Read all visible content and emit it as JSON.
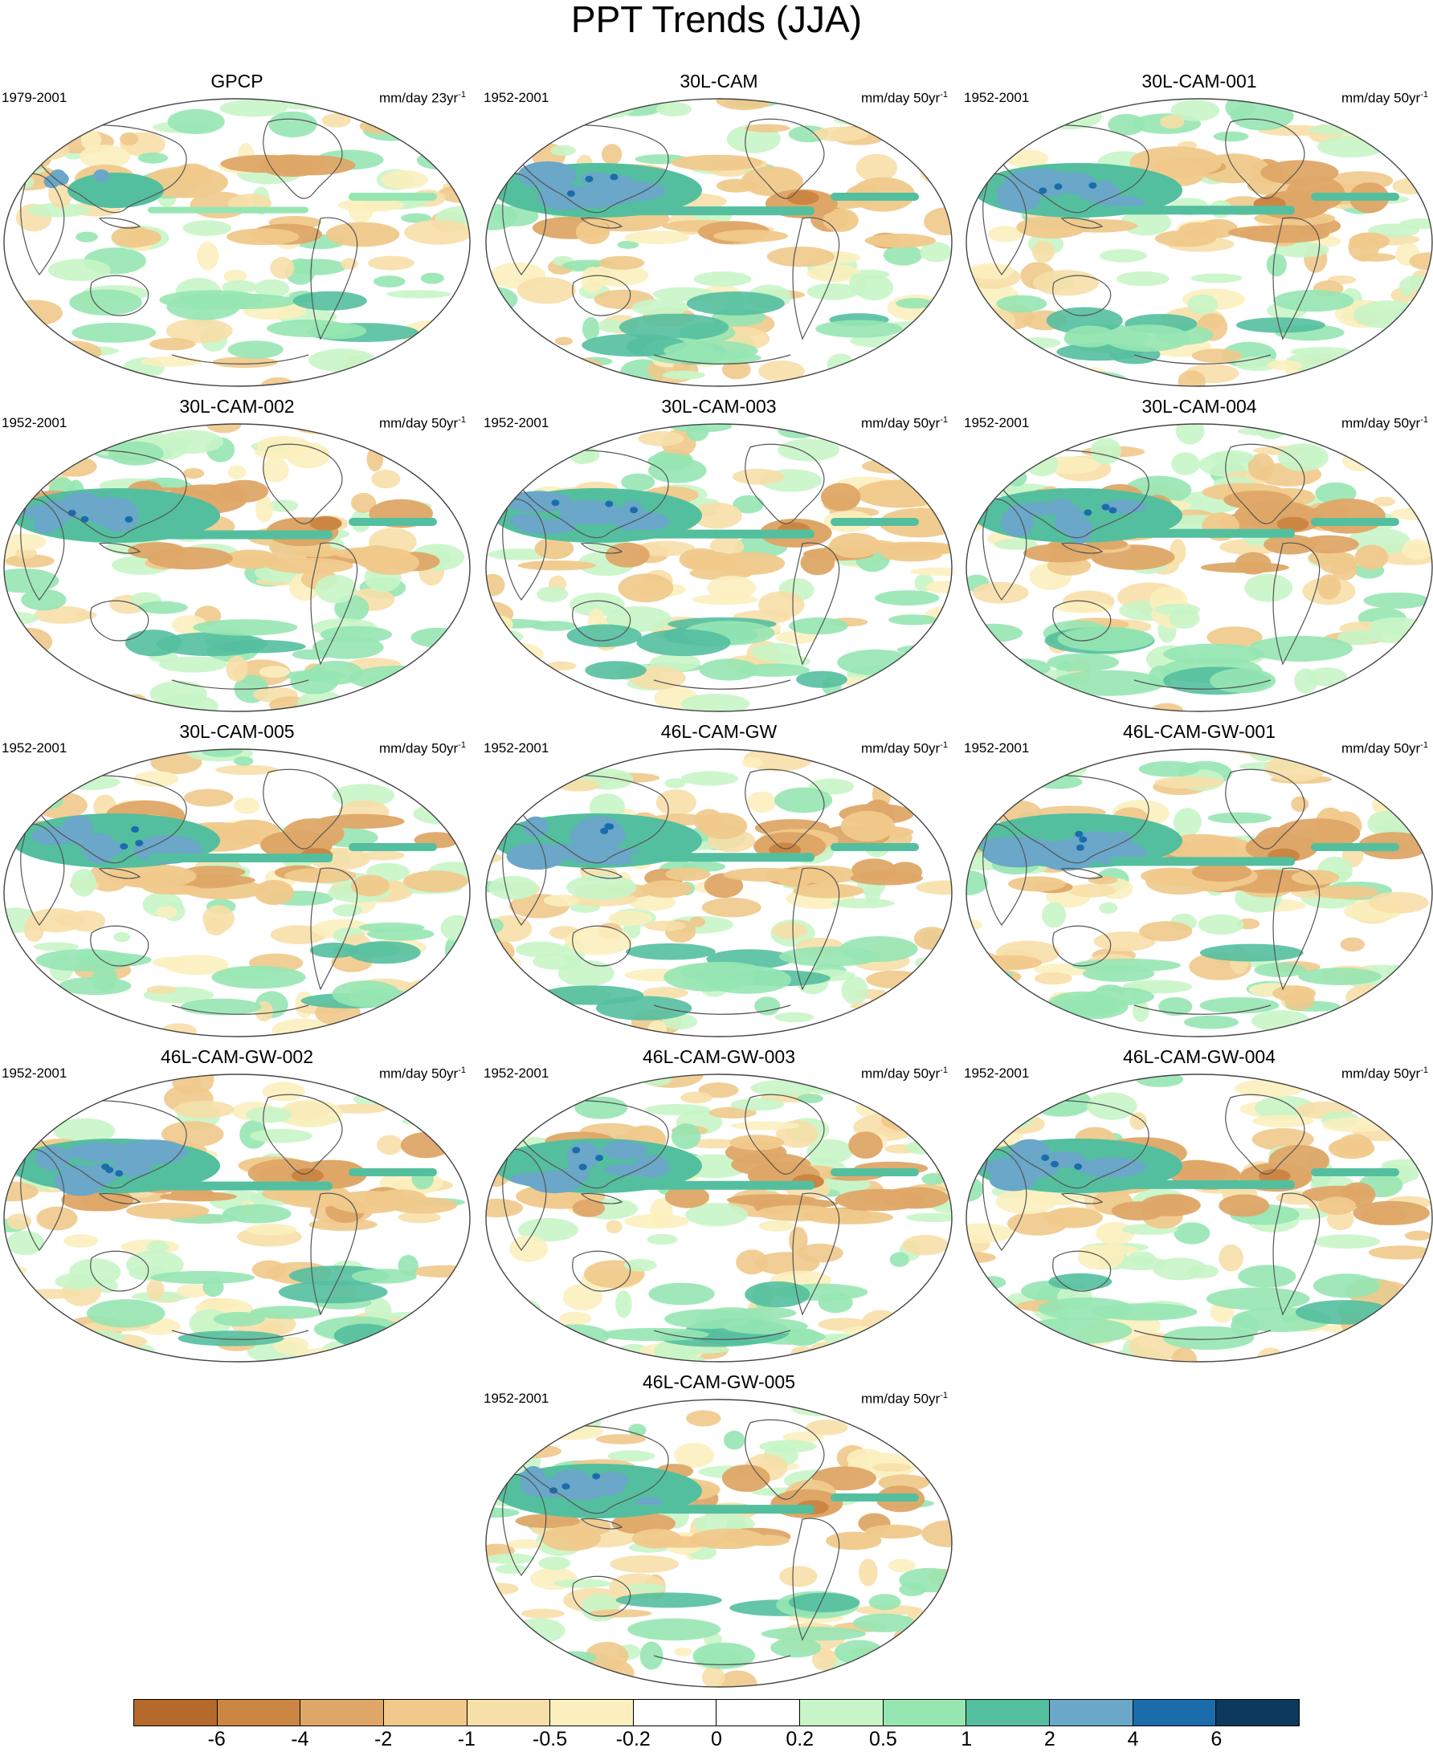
{
  "title": "PPT Trends (JJA)",
  "panels": [
    {
      "name": "GPCP",
      "period": "1979-2001",
      "units": "mm/day 23yr",
      "exp": "-1"
    },
    {
      "name": "30L-CAM",
      "period": "1952-2001",
      "units": "mm/day 50yr",
      "exp": "-1"
    },
    {
      "name": "30L-CAM-001",
      "period": "1952-2001",
      "units": "mm/day 50yr",
      "exp": "-1"
    },
    {
      "name": "30L-CAM-002",
      "period": "1952-2001",
      "units": "mm/day 50yr",
      "exp": "-1"
    },
    {
      "name": "30L-CAM-003",
      "period": "1952-2001",
      "units": "mm/day 50yr",
      "exp": "-1"
    },
    {
      "name": "30L-CAM-004",
      "period": "1952-2001",
      "units": "mm/day 50yr",
      "exp": "-1"
    },
    {
      "name": "30L-CAM-005",
      "period": "1952-2001",
      "units": "mm/day 50yr",
      "exp": "-1"
    },
    {
      "name": "46L-CAM-GW",
      "period": "1952-2001",
      "units": "mm/day 50yr",
      "exp": "-1"
    },
    {
      "name": "46L-CAM-GW-001",
      "period": "1952-2001",
      "units": "mm/day 50yr",
      "exp": "-1"
    },
    {
      "name": "46L-CAM-GW-002",
      "period": "1952-2001",
      "units": "mm/day 50yr",
      "exp": "-1"
    },
    {
      "name": "46L-CAM-GW-003",
      "period": "1952-2001",
      "units": "mm/day 50yr",
      "exp": "-1"
    },
    {
      "name": "46L-CAM-GW-004",
      "period": "1952-2001",
      "units": "mm/day 50yr",
      "exp": "-1"
    },
    {
      "name": "46L-CAM-GW-005",
      "period": "1952-2001",
      "units": "mm/day 50yr",
      "exp": "-1"
    }
  ],
  "colorbar": {
    "colors": [
      "#b5692a",
      "#cc8644",
      "#dea767",
      "#f0c98b",
      "#f7dfa9",
      "#fbefbe",
      "#ffffff",
      "#ffffff",
      "#c8f5c8",
      "#96e6b2",
      "#54bf9e",
      "#6aa7c8",
      "#1b6cab",
      "#0d3a5c"
    ],
    "labels": [
      "-6",
      "-4",
      "-2",
      "-1",
      "-0.5",
      "-0.2",
      "0",
      "0.2",
      "0.5",
      "1",
      "2",
      "4",
      "6"
    ]
  }
}
